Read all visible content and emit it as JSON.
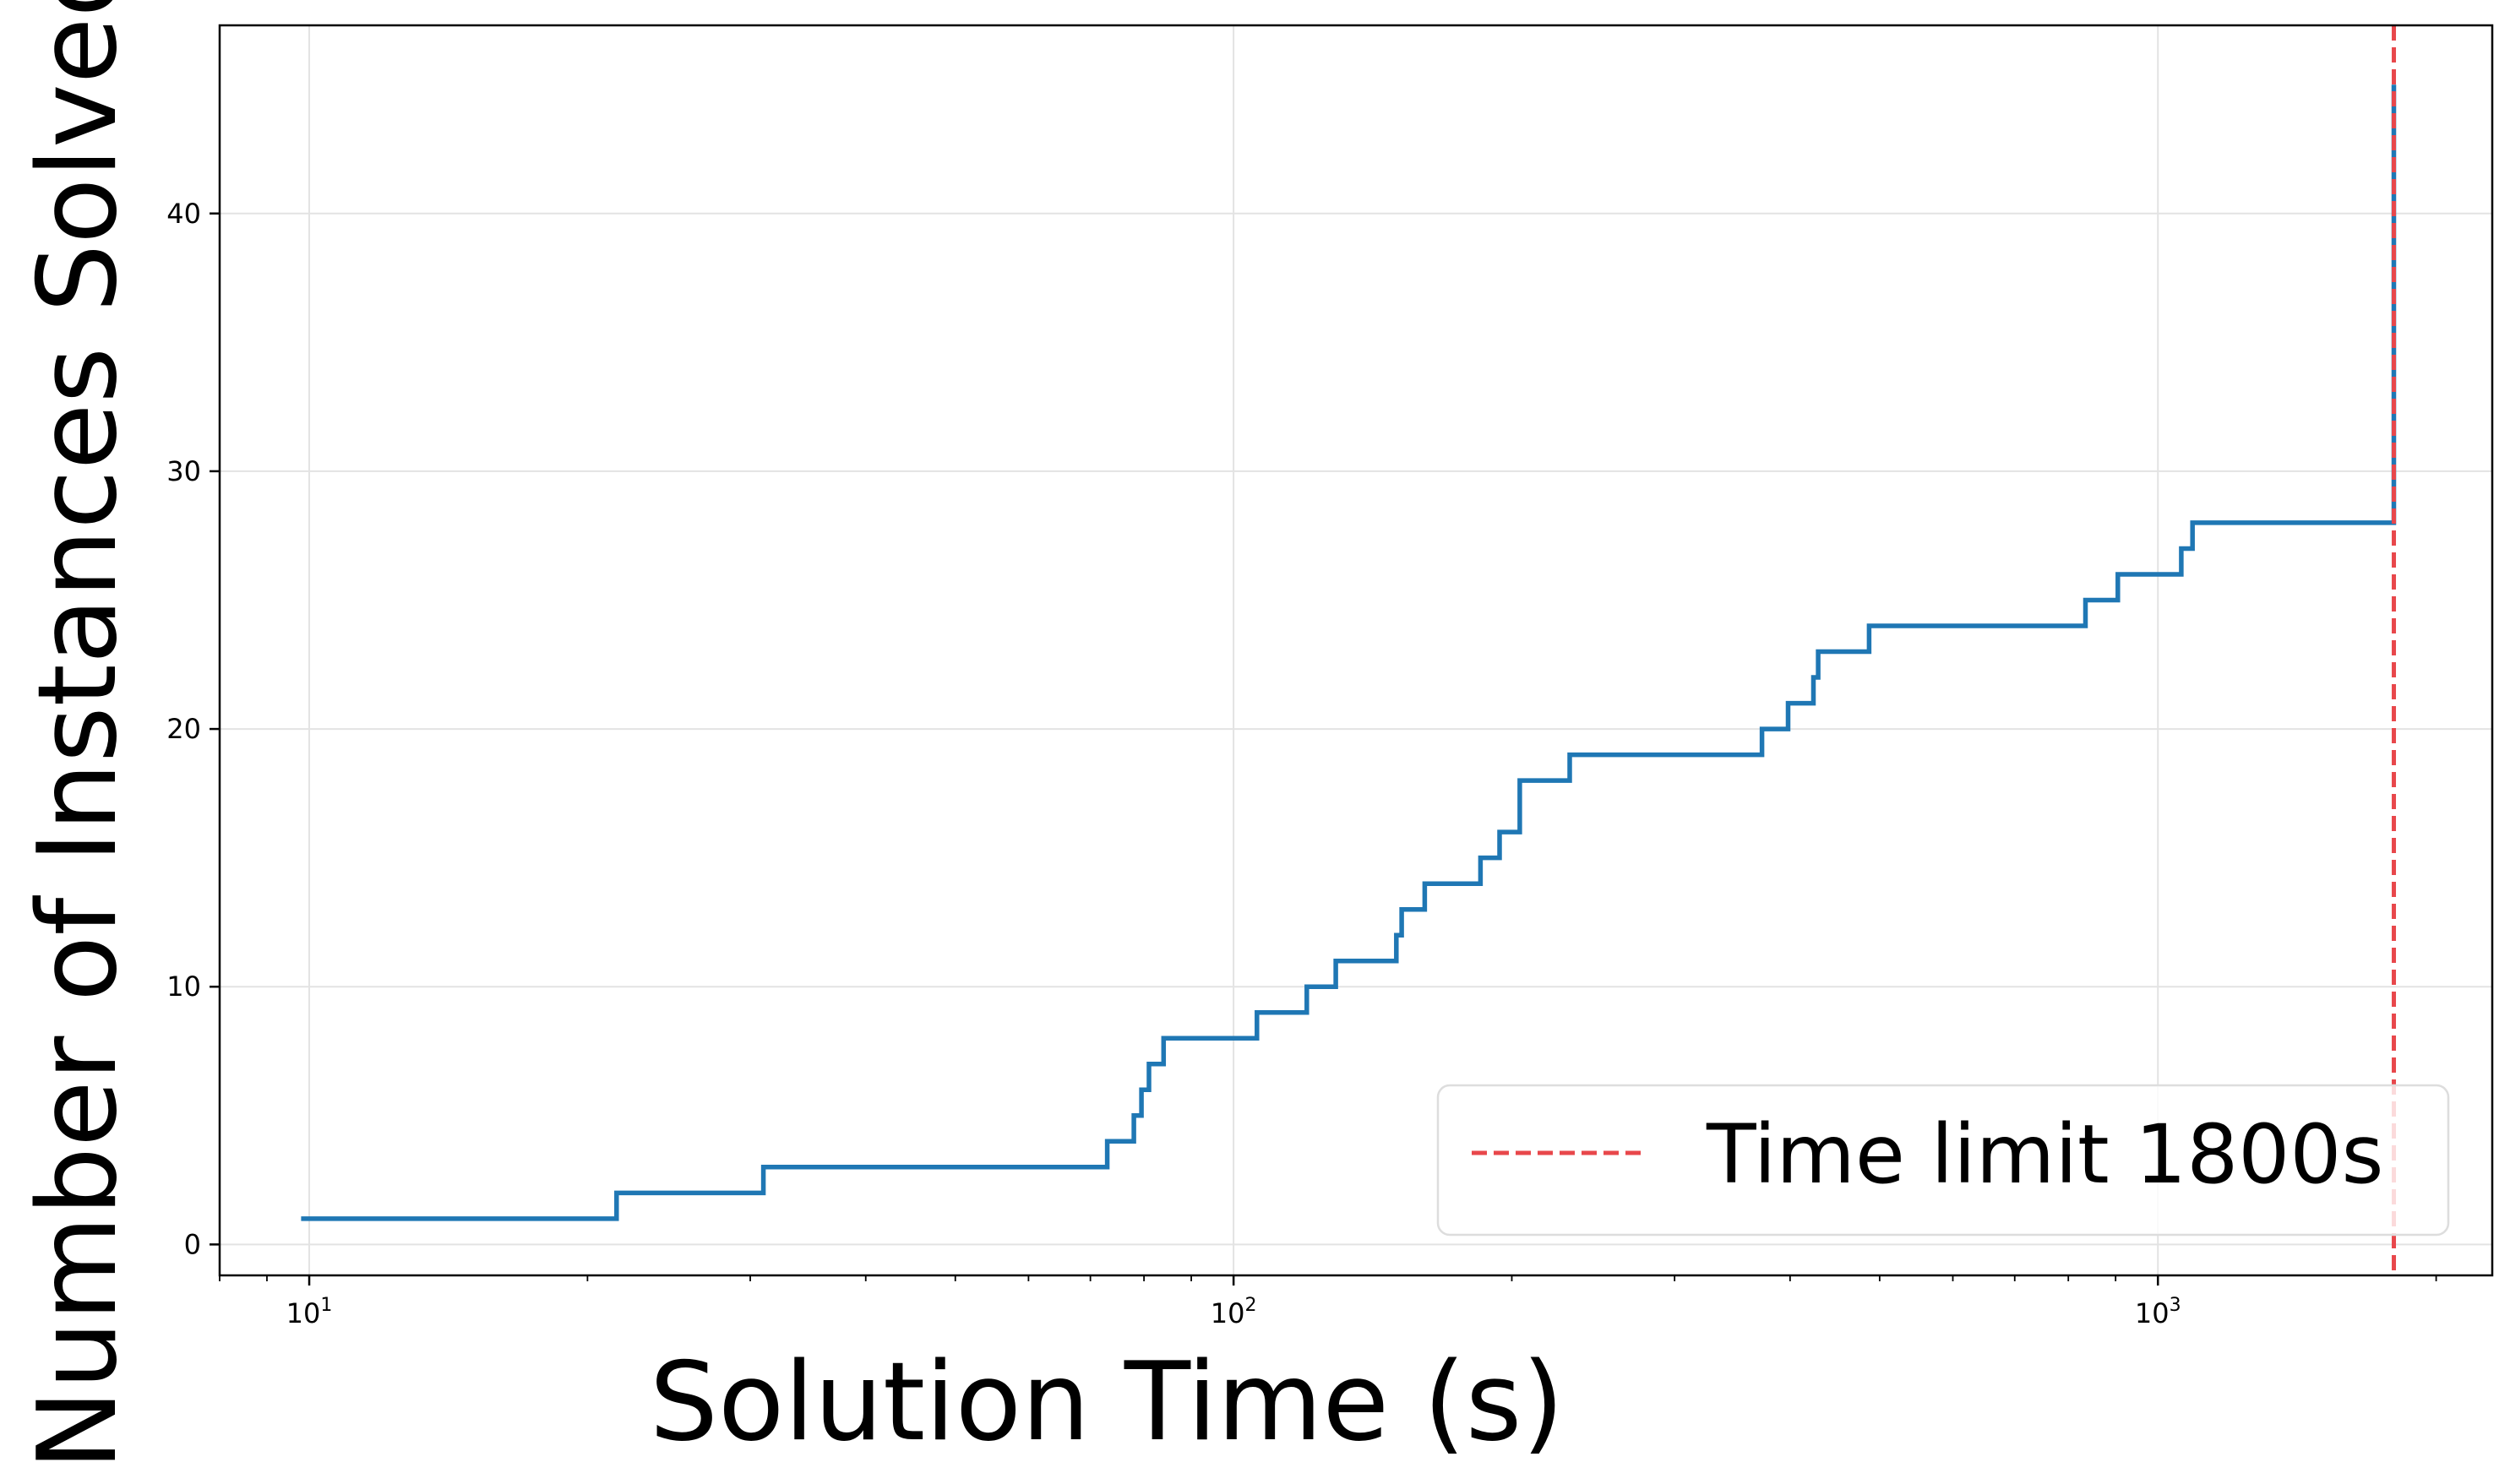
{
  "chart_data": {
    "type": "line",
    "xlabel": "Solution Time (s)",
    "ylabel": "Number of Instances Solved",
    "x_scale": "log",
    "xlim": [
      8,
      2300
    ],
    "ylim": [
      -1.2,
      47.3
    ],
    "x_ticks": [
      {
        "value": 10,
        "base": "10",
        "exp": "1"
      },
      {
        "value": 100,
        "base": "10",
        "exp": "2"
      },
      {
        "value": 1000,
        "base": "10",
        "exp": "3"
      }
    ],
    "y_ticks": [
      0,
      10,
      20,
      30,
      40
    ],
    "grid": true,
    "legend_position": "lower-right",
    "series": [
      {
        "type": "step",
        "color": "#1f77b4",
        "points": [
          [
            9.8,
            1
          ],
          [
            21.5,
            2
          ],
          [
            31,
            3
          ],
          [
            73,
            4
          ],
          [
            78,
            5
          ],
          [
            79.5,
            6
          ],
          [
            81,
            7
          ],
          [
            84,
            8
          ],
          [
            106,
            9
          ],
          [
            120,
            10
          ],
          [
            129,
            11
          ],
          [
            150,
            12
          ],
          [
            152,
            13
          ],
          [
            161,
            14
          ],
          [
            185,
            15
          ],
          [
            194,
            16
          ],
          [
            204,
            18
          ],
          [
            231,
            19
          ],
          [
            373,
            20
          ],
          [
            398,
            21
          ],
          [
            424,
            22
          ],
          [
            429,
            23
          ],
          [
            487,
            24
          ],
          [
            835,
            25
          ],
          [
            905,
            26
          ],
          [
            1060,
            27
          ],
          [
            1090,
            28
          ],
          [
            1800,
            32
          ],
          [
            1800,
            45
          ]
        ]
      }
    ],
    "reference_lines": [
      {
        "x": 1800,
        "label": "Time limit 1800s",
        "color": "#e8474b",
        "style": "dashed"
      }
    ]
  }
}
